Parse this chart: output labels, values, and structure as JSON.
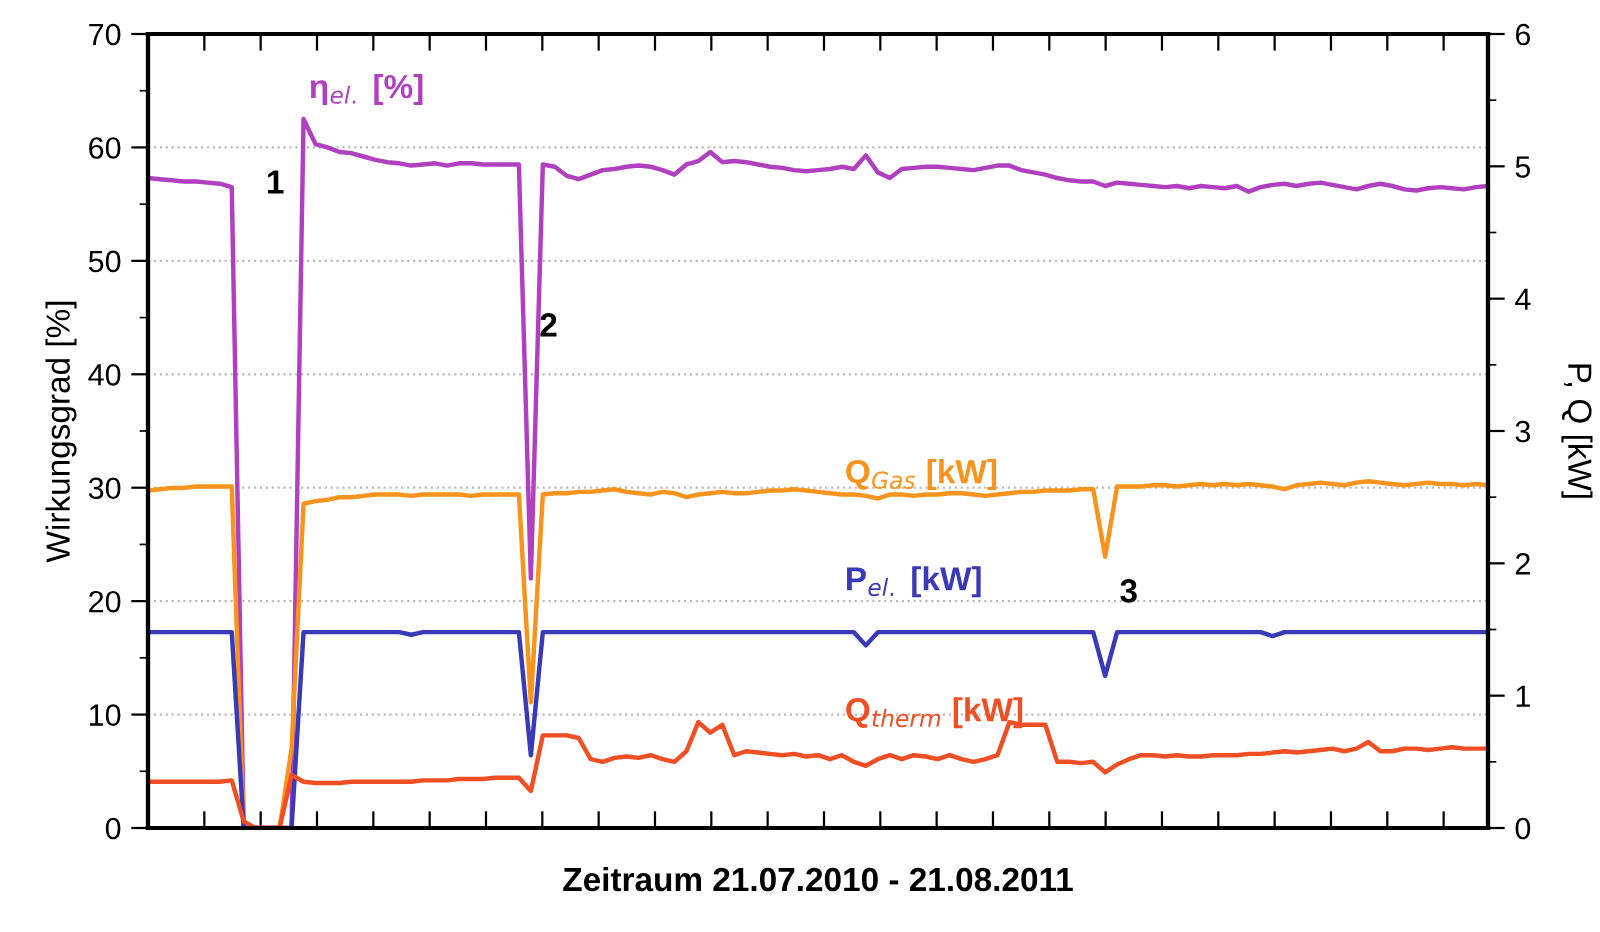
{
  "chart_data": {
    "type": "line",
    "xlabel": "Zeitraum 21.07.2010 - 21.08.2011",
    "ylabel": "Wirkungsgrad [%]",
    "y2label": "P, Q [kW]",
    "categories": [
      null,
      null,
      null,
      null,
      null,
      null,
      null,
      null,
      null,
      null,
      null,
      null,
      null,
      null,
      null,
      null,
      null,
      null,
      null,
      null,
      null,
      null,
      null,
      null,
      null,
      null,
      null,
      null,
      null,
      null,
      null,
      null,
      null,
      null,
      null,
      null,
      null,
      null,
      null,
      null,
      null,
      null,
      null,
      null,
      null,
      null,
      null,
      null,
      null,
      null,
      null,
      null,
      null,
      null,
      null,
      null,
      null,
      null,
      null,
      null,
      null,
      null,
      null,
      null,
      null,
      null,
      null,
      null,
      null,
      null,
      null,
      null,
      null,
      null,
      null,
      null,
      null,
      null,
      null,
      null,
      null,
      null,
      null,
      null,
      null,
      null,
      null,
      null,
      null,
      null,
      null,
      null,
      null,
      null,
      null,
      null,
      null,
      null,
      null,
      null,
      null,
      null,
      null,
      null,
      null,
      null,
      null,
      null,
      null,
      null,
      null,
      null,
      null
    ],
    "series": [
      {
        "name": "η$_{el.}$ [%]",
        "color": "#b040c0",
        "values": [
          57.3,
          57.2,
          57.1,
          57.0,
          57.0,
          56.9,
          56.8,
          56.5,
          0,
          0,
          0,
          0,
          0,
          62.5,
          60.3,
          60.0,
          59.6,
          59.5,
          59.2,
          58.9,
          58.7,
          58.6,
          58.4,
          58.5,
          58.6,
          58.4,
          58.6,
          58.6,
          58.5,
          58.5,
          58.5,
          58.5,
          22,
          58.5,
          58.3,
          57.5,
          57.2,
          57.6,
          58.0,
          58.1,
          58.3,
          58.4,
          58.3,
          58.0,
          57.6,
          58.5,
          58.8,
          59.6,
          58.7,
          58.8,
          58.7,
          58.5,
          58.3,
          58.2,
          58.0,
          57.9,
          58.0,
          58.1,
          58.3,
          58.1,
          59.3,
          57.8,
          57.3,
          58.1,
          58.2,
          58.3,
          58.3,
          58.2,
          58.1,
          58.0,
          58.2,
          58.4,
          58.4,
          58.0,
          57.8,
          57.6,
          57.3,
          57.1,
          57.0,
          57.0,
          56.6,
          56.9,
          56.8,
          56.7,
          56.6,
          56.5,
          56.6,
          56.4,
          56.6,
          56.5,
          56.4,
          56.6,
          56.1,
          56.5,
          56.7,
          56.8,
          56.6,
          56.8,
          56.9,
          56.7,
          56.5,
          56.3,
          56.6,
          56.8,
          56.6,
          56.3,
          56.2,
          56.4,
          56.5,
          56.4,
          56.3,
          56.5,
          56.6
        ]
      },
      {
        "name": "Q$_{Gas}$ [kW]",
        "color": "#f7941d",
        "axis": "y2",
        "values": [
          2.55,
          2.56,
          2.57,
          2.57,
          2.58,
          2.58,
          2.58,
          2.58,
          0.0,
          0,
          0,
          0,
          0.6,
          2.45,
          2.47,
          2.48,
          2.5,
          2.5,
          2.51,
          2.52,
          2.52,
          2.52,
          2.51,
          2.52,
          2.52,
          2.52,
          2.52,
          2.51,
          2.52,
          2.52,
          2.52,
          2.52,
          0.95,
          2.52,
          2.53,
          2.53,
          2.54,
          2.54,
          2.55,
          2.56,
          2.54,
          2.53,
          2.52,
          2.54,
          2.53,
          2.5,
          2.52,
          2.53,
          2.54,
          2.53,
          2.53,
          2.54,
          2.55,
          2.55,
          2.56,
          2.55,
          2.54,
          2.53,
          2.52,
          2.52,
          2.51,
          2.49,
          2.52,
          2.52,
          2.51,
          2.52,
          2.52,
          2.53,
          2.53,
          2.52,
          2.51,
          2.52,
          2.53,
          2.54,
          2.54,
          2.55,
          2.55,
          2.55,
          2.56,
          2.56,
          2.05,
          2.58,
          2.58,
          2.58,
          2.59,
          2.59,
          2.58,
          2.59,
          2.6,
          2.59,
          2.6,
          2.59,
          2.6,
          2.59,
          2.58,
          2.56,
          2.59,
          2.6,
          2.61,
          2.6,
          2.59,
          2.61,
          2.62,
          2.61,
          2.6,
          2.59,
          2.6,
          2.61,
          2.6,
          2.6,
          2.59,
          2.6,
          2.59
        ]
      },
      {
        "name": "P$_{el.}$ [kW]",
        "color": "#3a3ab8",
        "axis": "y2",
        "values": [
          1.48,
          1.48,
          1.48,
          1.48,
          1.48,
          1.48,
          1.48,
          1.48,
          0,
          0,
          0,
          0,
          0,
          1.48,
          1.48,
          1.48,
          1.48,
          1.48,
          1.48,
          1.48,
          1.48,
          1.48,
          1.46,
          1.48,
          1.48,
          1.48,
          1.48,
          1.48,
          1.48,
          1.48,
          1.48,
          1.48,
          0.55,
          1.48,
          1.48,
          1.48,
          1.48,
          1.48,
          1.48,
          1.48,
          1.48,
          1.48,
          1.48,
          1.48,
          1.48,
          1.48,
          1.48,
          1.48,
          1.48,
          1.48,
          1.48,
          1.48,
          1.48,
          1.48,
          1.48,
          1.48,
          1.48,
          1.48,
          1.48,
          1.48,
          1.38,
          1.48,
          1.48,
          1.48,
          1.48,
          1.48,
          1.48,
          1.48,
          1.48,
          1.48,
          1.48,
          1.48,
          1.48,
          1.48,
          1.48,
          1.48,
          1.48,
          1.48,
          1.48,
          1.48,
          1.15,
          1.48,
          1.48,
          1.48,
          1.48,
          1.48,
          1.48,
          1.48,
          1.48,
          1.48,
          1.48,
          1.48,
          1.48,
          1.48,
          1.45,
          1.48,
          1.48,
          1.48,
          1.48,
          1.48,
          1.48,
          1.48,
          1.48,
          1.48,
          1.48,
          1.48,
          1.48,
          1.48,
          1.48,
          1.48,
          1.48,
          1.48,
          1.48
        ]
      },
      {
        "name": "Q$_{therm}$ [kW]",
        "color": "#f04e23",
        "axis": "y2",
        "values": [
          0.35,
          0.35,
          0.35,
          0.35,
          0.35,
          0.35,
          0.35,
          0.36,
          0.05,
          0,
          0,
          0,
          0.4,
          0.35,
          0.34,
          0.34,
          0.34,
          0.35,
          0.35,
          0.35,
          0.35,
          0.35,
          0.35,
          0.36,
          0.36,
          0.36,
          0.37,
          0.37,
          0.37,
          0.38,
          0.38,
          0.38,
          0.28,
          0.7,
          0.7,
          0.7,
          0.68,
          0.52,
          0.5,
          0.53,
          0.54,
          0.53,
          0.55,
          0.52,
          0.5,
          0.58,
          0.8,
          0.72,
          0.78,
          0.55,
          0.58,
          0.57,
          0.56,
          0.55,
          0.56,
          0.54,
          0.55,
          0.52,
          0.55,
          0.5,
          0.47,
          0.52,
          0.55,
          0.52,
          0.55,
          0.54,
          0.52,
          0.55,
          0.52,
          0.5,
          0.52,
          0.55,
          0.8,
          0.78,
          0.78,
          0.78,
          0.5,
          0.5,
          0.49,
          0.5,
          0.42,
          0.48,
          0.52,
          0.55,
          0.55,
          0.54,
          0.55,
          0.54,
          0.54,
          0.55,
          0.55,
          0.55,
          0.56,
          0.56,
          0.57,
          0.58,
          0.57,
          0.58,
          0.59,
          0.6,
          0.58,
          0.6,
          0.65,
          0.58,
          0.58,
          0.6,
          0.6,
          0.59,
          0.6,
          0.61,
          0.6,
          0.6,
          0.6
        ]
      }
    ],
    "annotations": [
      "1",
      "2",
      "3"
    ],
    "ylim": [
      0,
      70
    ],
    "yticks": [
      0,
      10,
      20,
      30,
      40,
      50,
      60,
      70
    ],
    "y2lim": [
      0,
      6
    ],
    "y2ticks": [
      0,
      1,
      2,
      3,
      4,
      5,
      6
    ],
    "grid": "y",
    "tick_labels": "y",
    "legend": false,
    "line_style": "solid",
    "marker": "none"
  }
}
